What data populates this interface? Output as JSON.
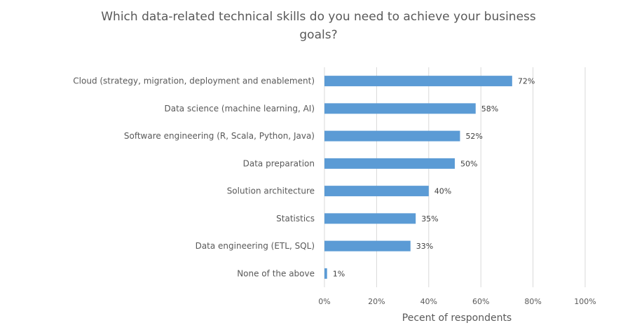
{
  "chart_data": {
    "type": "bar",
    "orientation": "horizontal",
    "title_line1": "Which data-related technical skills do you need to achieve your business",
    "title_line2": "goals?",
    "categories": [
      "Cloud (strategy, migration, deployment and enablement)",
      "Data science (machine learning, AI)",
      "Software engineering (R, Scala, Python, Java)",
      "Data preparation",
      "Solution architecture",
      "Statistics",
      "Data engineering (ETL, SQL)",
      "None of the above"
    ],
    "values": [
      72,
      58,
      52,
      50,
      40,
      35,
      33,
      1
    ],
    "data_labels": [
      "72%",
      "58%",
      "52%",
      "50%",
      "40%",
      "35%",
      "33%",
      "1%"
    ],
    "xlabel": "Pecent of respondents",
    "xlim": [
      0,
      100
    ],
    "xticks": [
      0,
      20,
      40,
      60,
      80,
      100
    ],
    "xtick_labels": [
      "0%",
      "20%",
      "40%",
      "60%",
      "80%",
      "100%"
    ],
    "grid": true,
    "legend": "none",
    "bar_color": "#5B9BD5",
    "grid_color": "#D9D9D9"
  }
}
